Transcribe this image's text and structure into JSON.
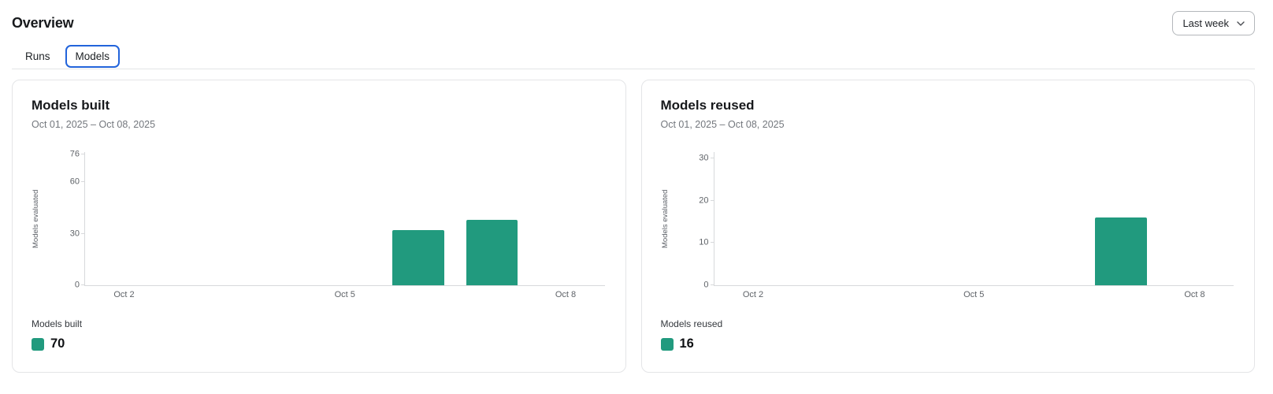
{
  "page_title": "Overview",
  "range_selector": {
    "value": "Last week",
    "icon": "chevron-down-icon"
  },
  "tabs": [
    {
      "label": "Runs",
      "active": false
    },
    {
      "label": "Models",
      "active": true
    }
  ],
  "cards": [
    {
      "title": "Models built",
      "subtitle": "Oct 01, 2025 – Oct 08, 2025",
      "legend_label": "Models built",
      "legend_value": "70"
    },
    {
      "title": "Models reused",
      "subtitle": "Oct 01, 2025 – Oct 08, 2025",
      "legend_label": "Models reused",
      "legend_value": "16"
    }
  ],
  "chart_data": [
    {
      "type": "bar",
      "title": "Models built",
      "subtitle": "Oct 01, 2025 – Oct 08, 2025",
      "xlabel": "",
      "ylabel": "Models evaluated",
      "x_tick_labels": [
        "Oct 2",
        "Oct 5",
        "Oct 8"
      ],
      "x_tick_days": [
        2,
        5,
        8
      ],
      "x_domain_days": [
        1.47,
        8.53
      ],
      "y_ticks": [
        0,
        30,
        60,
        76
      ],
      "ylim": [
        0,
        77.5
      ],
      "bars": [
        {
          "x": "Oct 6",
          "day": 6,
          "value": 32
        },
        {
          "x": "Oct 7",
          "day": 7,
          "value": 38
        }
      ],
      "total": 70,
      "bar_width_days": 0.7,
      "bar_color": "#219a7e",
      "grid": false,
      "legend_position": "bottom-left"
    },
    {
      "type": "bar",
      "title": "Models reused",
      "subtitle": "Oct 01, 2025 – Oct 08, 2025",
      "xlabel": "",
      "ylabel": "Models evaluated",
      "x_tick_labels": [
        "Oct 2",
        "Oct 5",
        "Oct 8"
      ],
      "x_tick_days": [
        2,
        5,
        8
      ],
      "x_domain_days": [
        1.47,
        8.53
      ],
      "y_ticks": [
        0,
        10,
        20,
        30
      ],
      "ylim": [
        0,
        31.5
      ],
      "bars": [
        {
          "x": "Oct 7",
          "day": 7,
          "value": 16
        }
      ],
      "total": 16,
      "bar_width_days": 0.7,
      "bar_color": "#219a7e",
      "grid": false,
      "legend_position": "bottom-left"
    }
  ],
  "colors": {
    "bar": "#219a7e",
    "active_tab_border": "#2264db",
    "card_border": "#e4e5e7",
    "axis_line": "#d7d9db",
    "tick_label": "#5f6368",
    "text_primary": "#17191c",
    "text_secondary": "#73777d"
  }
}
